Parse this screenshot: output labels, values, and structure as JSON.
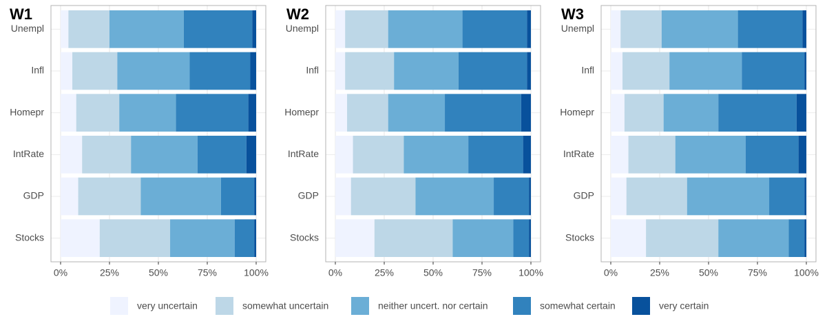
{
  "chart_data": [
    {
      "type": "stacked-bar-horizontal",
      "title": "W1",
      "categories": [
        "Unempl",
        "Infl",
        "Homepr",
        "IntRate",
        "GDP",
        "Stocks"
      ],
      "series": [
        {
          "name": "very uncertain",
          "color": "#eff3ff",
          "values": [
            4,
            6,
            8,
            11,
            9,
            20
          ]
        },
        {
          "name": "somewhat uncertain",
          "color": "#bdd7e7",
          "values": [
            21,
            23,
            22,
            25,
            32,
            36
          ]
        },
        {
          "name": "neither uncert. nor certain",
          "color": "#6baed6",
          "values": [
            38,
            37,
            29,
            34,
            41,
            33
          ]
        },
        {
          "name": "somewhat certain",
          "color": "#3182bd",
          "values": [
            35,
            31,
            37,
            25,
            17,
            10
          ]
        },
        {
          "name": "very certain",
          "color": "#08519c",
          "values": [
            2,
            3,
            4,
            5,
            1,
            1
          ]
        }
      ],
      "xlim": [
        0,
        100
      ],
      "xticks": [
        {
          "value": 0,
          "label": "0%"
        },
        {
          "value": 25,
          "label": "25%"
        },
        {
          "value": 50,
          "label": "50%"
        },
        {
          "value": 75,
          "label": "75%"
        },
        {
          "value": 100,
          "label": "100%"
        }
      ],
      "grid": true
    },
    {
      "type": "stacked-bar-horizontal",
      "title": "W2",
      "categories": [
        "Unempl",
        "Infl",
        "Homepr",
        "IntRate",
        "GDP",
        "Stocks"
      ],
      "series": [
        {
          "name": "very uncertain",
          "color": "#eff3ff",
          "values": [
            5,
            5,
            6,
            9,
            8,
            20
          ]
        },
        {
          "name": "somewhat uncertain",
          "color": "#bdd7e7",
          "values": [
            22,
            25,
            21,
            26,
            33,
            40
          ]
        },
        {
          "name": "neither uncert. nor certain",
          "color": "#6baed6",
          "values": [
            38,
            33,
            29,
            33,
            40,
            31
          ]
        },
        {
          "name": "somewhat certain",
          "color": "#3182bd",
          "values": [
            33,
            35,
            39,
            28,
            18,
            8
          ]
        },
        {
          "name": "very certain",
          "color": "#08519c",
          "values": [
            2,
            2,
            5,
            4,
            1,
            1
          ]
        }
      ],
      "xlim": [
        0,
        100
      ],
      "xticks": [
        {
          "value": 0,
          "label": "0%"
        },
        {
          "value": 25,
          "label": "25%"
        },
        {
          "value": 50,
          "label": "50%"
        },
        {
          "value": 75,
          "label": "75%"
        },
        {
          "value": 100,
          "label": "100%"
        }
      ],
      "grid": true
    },
    {
      "type": "stacked-bar-horizontal",
      "title": "W3",
      "categories": [
        "Unempl",
        "Infl",
        "Homepr",
        "IntRate",
        "GDP",
        "Stocks"
      ],
      "series": [
        {
          "name": "very uncertain",
          "color": "#eff3ff",
          "values": [
            5,
            6,
            7,
            9,
            8,
            18
          ]
        },
        {
          "name": "somewhat uncertain",
          "color": "#bdd7e7",
          "values": [
            21,
            24,
            20,
            24,
            31,
            37
          ]
        },
        {
          "name": "neither uncert. nor certain",
          "color": "#6baed6",
          "values": [
            39,
            37,
            28,
            36,
            42,
            36
          ]
        },
        {
          "name": "somewhat certain",
          "color": "#3182bd",
          "values": [
            33,
            32,
            40,
            27,
            18,
            8
          ]
        },
        {
          "name": "very certain",
          "color": "#08519c",
          "values": [
            2,
            1,
            5,
            4,
            1,
            1
          ]
        }
      ],
      "xlim": [
        0,
        100
      ],
      "xticks": [
        {
          "value": 0,
          "label": "0%"
        },
        {
          "value": 25,
          "label": "25%"
        },
        {
          "value": 50,
          "label": "50%"
        },
        {
          "value": 75,
          "label": "75%"
        },
        {
          "value": 100,
          "label": "100%"
        }
      ],
      "grid": true
    }
  ]
}
